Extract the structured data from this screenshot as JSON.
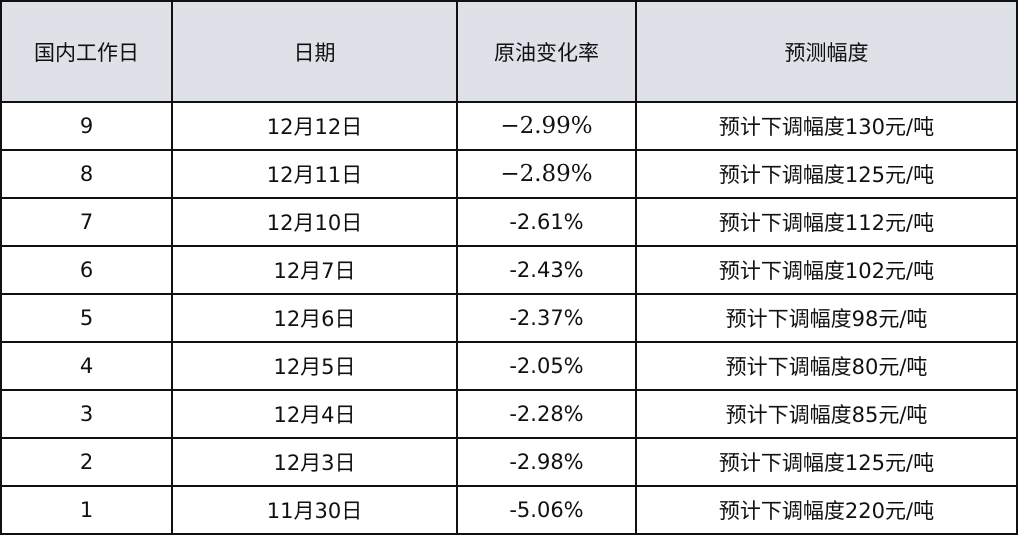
{
  "table": {
    "header": [
      "国内工作日",
      "日期",
      "原油变化率",
      "预测幅度"
    ],
    "rows": [
      [
        "9",
        "12月12日",
        "−2.99%",
        "预计下调幅度130元/吨"
      ],
      [
        "8",
        "12月11日",
        "−2.89%",
        "预计下调幅度125元/吨"
      ],
      [
        "7",
        "12月10日",
        "-2.61%",
        "预计下调幅度112元/吨"
      ],
      [
        "6",
        "12月7日",
        "-2.43%",
        "预计下调幅度102元/吨"
      ],
      [
        "5",
        "12月6日",
        "-2.37%",
        "预计下调幅度98元/吨"
      ],
      [
        "4",
        "12月5日",
        "-2.05%",
        "预计下调幅度80元/吨"
      ],
      [
        "3",
        "12月4日",
        "-2.28%",
        "预计下调幅度85元/吨"
      ],
      [
        "2",
        "12月3日",
        "-2.98%",
        "预计下调幅度125元/吨"
      ],
      [
        "1",
        "11月30日",
        "-5.06%",
        "预计下调幅度220元/吨"
      ]
    ]
  }
}
